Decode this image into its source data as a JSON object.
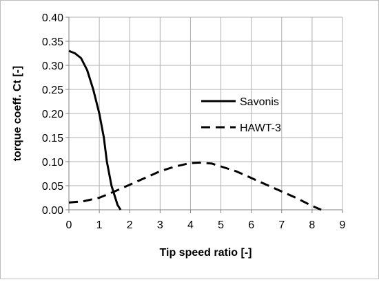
{
  "chart_data": {
    "type": "line",
    "title": "",
    "xlabel": "Tip speed ratio [-]",
    "ylabel": "torque coeff. Ct [-]",
    "xlim": [
      0,
      9
    ],
    "ylim": [
      0,
      0.4
    ],
    "x_ticks": [
      0,
      1,
      2,
      3,
      4,
      5,
      6,
      7,
      8,
      9
    ],
    "y_ticks": [
      0.0,
      0.05,
      0.1,
      0.15,
      0.2,
      0.25,
      0.3,
      0.35,
      0.4
    ],
    "x_tick_labels": [
      "0",
      "1",
      "2",
      "3",
      "4",
      "5",
      "6",
      "7",
      "8",
      "9"
    ],
    "y_tick_labels": [
      "0.00",
      "0.05",
      "0.10",
      "0.15",
      "0.20",
      "0.25",
      "0.30",
      "0.35",
      "0.40"
    ],
    "grid": "major gridlines on both axes",
    "legend_position": "right-center",
    "series": [
      {
        "name": "Savonis",
        "style": "solid",
        "color": "#000000",
        "points": [
          [
            0,
            0.33
          ],
          [
            0.2,
            0.325
          ],
          [
            0.4,
            0.315
          ],
          [
            0.6,
            0.29
          ],
          [
            0.8,
            0.25
          ],
          [
            1.0,
            0.2
          ],
          [
            1.15,
            0.15
          ],
          [
            1.25,
            0.1
          ],
          [
            1.4,
            0.05
          ],
          [
            1.6,
            0.01
          ],
          [
            1.7,
            0.0
          ]
        ]
      },
      {
        "name": "HAWT-3",
        "style": "dashed",
        "color": "#000000",
        "points": [
          [
            0,
            0.015
          ],
          [
            0.5,
            0.018
          ],
          [
            1.0,
            0.025
          ],
          [
            1.5,
            0.038
          ],
          [
            2.0,
            0.052
          ],
          [
            2.5,
            0.066
          ],
          [
            3.0,
            0.08
          ],
          [
            3.5,
            0.09
          ],
          [
            4.0,
            0.097
          ],
          [
            4.3,
            0.098
          ],
          [
            4.7,
            0.096
          ],
          [
            5.0,
            0.09
          ],
          [
            5.5,
            0.08
          ],
          [
            6.0,
            0.066
          ],
          [
            6.5,
            0.052
          ],
          [
            7.0,
            0.038
          ],
          [
            7.5,
            0.024
          ],
          [
            8.0,
            0.008
          ],
          [
            8.3,
            0.0
          ]
        ]
      }
    ]
  },
  "colors": {
    "background": "#ffffff",
    "frame_border": "#bdbdbd",
    "grid": "#b0b0b0",
    "axis": "#7f7f7f",
    "series": "#000000"
  }
}
